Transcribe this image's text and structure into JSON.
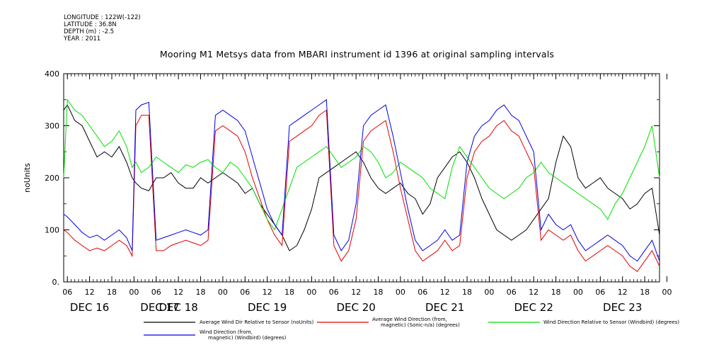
{
  "meta": {
    "longitude": "LONGITUDE : 122W(-122)",
    "latitude": "LATITUDE : 36.8N",
    "depth": "DEPTH (m) : -2.5",
    "year": "YEAR : 2011"
  },
  "colors": {
    "avg_dir_sensor": "#000000",
    "avg_dir_magnetic": "#e00000",
    "dir_sensor_windbird": "#00e000",
    "dir_magnetic_windbird": "#0000e0"
  },
  "chart_data": {
    "type": "line",
    "title": "Mooring M1 Metsys data from MBARI instrument id 1396 at original sampling intervals",
    "ylabel": "noUnits",
    "xlabel": "",
    "ylim": [
      0,
      400
    ],
    "y_ticks": [
      "0.",
      "100",
      "200",
      "300",
      "400"
    ],
    "x_unit": "hours since Dec 16 2011 00:00",
    "xlim": [
      5,
      166
    ],
    "hour_ticks": [
      {
        "h": 6,
        "label": "06"
      },
      {
        "h": 12,
        "label": "12"
      },
      {
        "h": 18,
        "label": "18"
      },
      {
        "h": 24,
        "label": "00"
      },
      {
        "h": 30,
        "label": "06"
      },
      {
        "h": 36,
        "label": "12"
      },
      {
        "h": 42,
        "label": "18"
      },
      {
        "h": 48,
        "label": "00"
      },
      {
        "h": 54,
        "label": "06"
      },
      {
        "h": 60,
        "label": "12"
      },
      {
        "h": 66,
        "label": "18"
      },
      {
        "h": 72,
        "label": "00"
      },
      {
        "h": 78,
        "label": "06"
      },
      {
        "h": 84,
        "label": "12"
      },
      {
        "h": 90,
        "label": "18"
      },
      {
        "h": 96,
        "label": "00"
      },
      {
        "h": 102,
        "label": "06"
      },
      {
        "h": 108,
        "label": "12"
      },
      {
        "h": 114,
        "label": "18"
      },
      {
        "h": 120,
        "label": "00"
      },
      {
        "h": 126,
        "label": "06"
      },
      {
        "h": 132,
        "label": "12"
      },
      {
        "h": 138,
        "label": "18"
      },
      {
        "h": 144,
        "label": "00"
      },
      {
        "h": 150,
        "label": "06"
      },
      {
        "h": 156,
        "label": "12"
      },
      {
        "h": 162,
        "label": "18"
      },
      {
        "h": 168,
        "label": "00"
      }
    ],
    "day_labels": [
      {
        "h": 12,
        "label": "DEC 16"
      },
      {
        "h": 31,
        "label": "DEC 17"
      },
      {
        "h": 36,
        "label": "DEC 18"
      },
      {
        "h": 60,
        "label": "DEC 19"
      },
      {
        "h": 84,
        "label": "DEC 20"
      },
      {
        "h": 108,
        "label": "DEC 21"
      },
      {
        "h": 132,
        "label": "DEC 22"
      },
      {
        "h": 156,
        "label": "DEC 23"
      }
    ],
    "series": [
      {
        "name": "Average Wind Dir Relative to Sensor (noUnits)",
        "color": "#000000",
        "x": [
          5,
          6,
          8,
          10,
          12,
          14,
          16,
          18,
          20,
          22,
          23.5,
          24.5,
          26,
          28,
          30,
          32,
          34,
          36,
          38,
          40,
          42,
          44,
          46,
          48,
          50,
          52,
          54,
          56,
          58,
          60,
          62,
          64,
          66,
          68,
          70,
          72,
          74,
          76,
          78,
          80,
          82,
          84,
          86,
          88,
          90,
          92,
          94,
          96,
          98,
          100,
          102,
          104,
          106,
          108,
          110,
          112,
          114,
          116,
          118,
          120,
          122,
          124,
          126,
          128,
          130,
          132,
          134,
          136,
          138,
          140,
          142,
          144,
          146,
          148,
          150,
          152,
          154,
          156,
          158,
          160,
          162,
          164,
          166
        ],
        "values": [
          330,
          340,
          310,
          300,
          270,
          240,
          250,
          240,
          260,
          230,
          200,
          190,
          180,
          175,
          200,
          200,
          210,
          190,
          180,
          180,
          200,
          190,
          200,
          210,
          200,
          190,
          170,
          180,
          150,
          130,
          110,
          90,
          60,
          70,
          100,
          140,
          200,
          210,
          220,
          230,
          240,
          250,
          230,
          200,
          180,
          170,
          180,
          190,
          170,
          160,
          130,
          150,
          200,
          220,
          240,
          250,
          230,
          200,
          160,
          130,
          100,
          90,
          80,
          90,
          100,
          120,
          140,
          160,
          230,
          280,
          260,
          200,
          180,
          190,
          200,
          180,
          170,
          160,
          140,
          150,
          170,
          180,
          90
        ]
      },
      {
        "name": "Average Wind Direction (from, magnetic) (Sonic-n/a) (degrees)",
        "color": "#e00000",
        "x": [
          5,
          6,
          8,
          10,
          12,
          14,
          16,
          18,
          20,
          22,
          23.5,
          24.5,
          26,
          28,
          30,
          32,
          34,
          36,
          38,
          40,
          42,
          44,
          46,
          48,
          50,
          52,
          54,
          56,
          58,
          60,
          62,
          64,
          66,
          68,
          70,
          72,
          74,
          76,
          78,
          80,
          82,
          84,
          86,
          88,
          90,
          92,
          94,
          96,
          98,
          100,
          102,
          104,
          106,
          108,
          110,
          112,
          114,
          116,
          118,
          120,
          122,
          124,
          126,
          128,
          130,
          132,
          134,
          136,
          138,
          140,
          142,
          144,
          146,
          148,
          150,
          152,
          154,
          156,
          158,
          160,
          162,
          164,
          166
        ],
        "values": [
          100,
          95,
          80,
          70,
          60,
          65,
          60,
          70,
          80,
          70,
          50,
          300,
          320,
          320,
          60,
          60,
          70,
          75,
          80,
          75,
          70,
          80,
          290,
          300,
          290,
          280,
          250,
          200,
          160,
          120,
          90,
          70,
          270,
          280,
          290,
          300,
          320,
          330,
          70,
          40,
          60,
          120,
          270,
          290,
          300,
          310,
          250,
          180,
          120,
          60,
          40,
          50,
          60,
          80,
          60,
          70,
          200,
          250,
          270,
          280,
          300,
          310,
          290,
          280,
          250,
          220,
          80,
          100,
          90,
          80,
          90,
          60,
          40,
          50,
          60,
          70,
          60,
          50,
          30,
          20,
          40,
          60,
          30
        ]
      },
      {
        "name": "Wind Direction Relative to Sensor (Windbird) (degrees)",
        "color": "#00e000",
        "x": [
          5,
          6,
          8,
          10,
          12,
          14,
          16,
          18,
          20,
          22,
          23.5,
          24.5,
          26,
          28,
          30,
          32,
          34,
          36,
          38,
          40,
          42,
          44,
          46,
          48,
          50,
          52,
          54,
          56,
          58,
          60,
          62,
          64,
          66,
          68,
          70,
          72,
          74,
          76,
          78,
          80,
          82,
          84,
          86,
          88,
          90,
          92,
          94,
          96,
          98,
          100,
          102,
          104,
          106,
          108,
          110,
          112,
          114,
          116,
          118,
          120,
          122,
          124,
          126,
          128,
          130,
          132,
          134,
          136,
          138,
          140,
          142,
          144,
          146,
          148,
          150,
          152,
          154,
          156,
          158,
          160,
          162,
          164,
          166
        ],
        "values": [
          200,
          350,
          330,
          320,
          300,
          280,
          260,
          270,
          290,
          260,
          220,
          230,
          210,
          220,
          240,
          230,
          220,
          210,
          225,
          220,
          230,
          235,
          220,
          210,
          230,
          220,
          200,
          180,
          150,
          120,
          100,
          140,
          180,
          220,
          230,
          240,
          250,
          260,
          240,
          220,
          230,
          240,
          260,
          250,
          230,
          200,
          210,
          230,
          220,
          210,
          200,
          180,
          170,
          160,
          220,
          260,
          240,
          220,
          200,
          180,
          170,
          160,
          170,
          180,
          200,
          210,
          230,
          210,
          200,
          190,
          180,
          170,
          160,
          150,
          140,
          120,
          150,
          170,
          200,
          230,
          260,
          300,
          200
        ]
      },
      {
        "name": "Wind Direction (from, magnetic) (Windbird) (degrees)",
        "color": "#0000e0",
        "x": [
          5,
          6,
          8,
          10,
          12,
          14,
          16,
          18,
          20,
          22,
          23.5,
          24.5,
          26,
          28,
          30,
          32,
          34,
          36,
          38,
          40,
          42,
          44,
          46,
          48,
          50,
          52,
          54,
          56,
          58,
          60,
          62,
          64,
          66,
          68,
          70,
          72,
          74,
          76,
          78,
          80,
          82,
          84,
          86,
          88,
          90,
          92,
          94,
          96,
          98,
          100,
          102,
          104,
          106,
          108,
          110,
          112,
          114,
          116,
          118,
          120,
          122,
          124,
          126,
          128,
          130,
          132,
          134,
          136,
          138,
          140,
          142,
          144,
          146,
          148,
          150,
          152,
          154,
          156,
          158,
          160,
          162,
          164,
          166
        ],
        "values": [
          130,
          125,
          110,
          95,
          85,
          90,
          80,
          90,
          100,
          85,
          60,
          330,
          340,
          345,
          80,
          85,
          90,
          95,
          100,
          95,
          90,
          100,
          320,
          330,
          320,
          310,
          290,
          240,
          190,
          140,
          110,
          90,
          300,
          310,
          320,
          330,
          340,
          350,
          90,
          60,
          80,
          150,
          300,
          320,
          330,
          340,
          280,
          210,
          140,
          80,
          60,
          70,
          80,
          100,
          80,
          90,
          230,
          280,
          300,
          310,
          330,
          340,
          320,
          310,
          280,
          250,
          100,
          130,
          110,
          100,
          110,
          80,
          60,
          70,
          80,
          90,
          80,
          70,
          50,
          40,
          60,
          80,
          40
        ]
      }
    ],
    "legend": [
      {
        "line1": "Average Wind Dir Relative to Sensor (noUnits)",
        "line2": ""
      },
      {
        "line1": "Average Wind Direction (from,",
        "line2": "magnetic) (Sonic-n/a) (degrees)"
      },
      {
        "line1": "Wind Direction Relative to Sensor (Windbird) (degrees)",
        "line2": ""
      },
      {
        "line1": "Wind Direction (from,",
        "line2": "magnetic) (Windbird) (degrees)"
      }
    ]
  }
}
